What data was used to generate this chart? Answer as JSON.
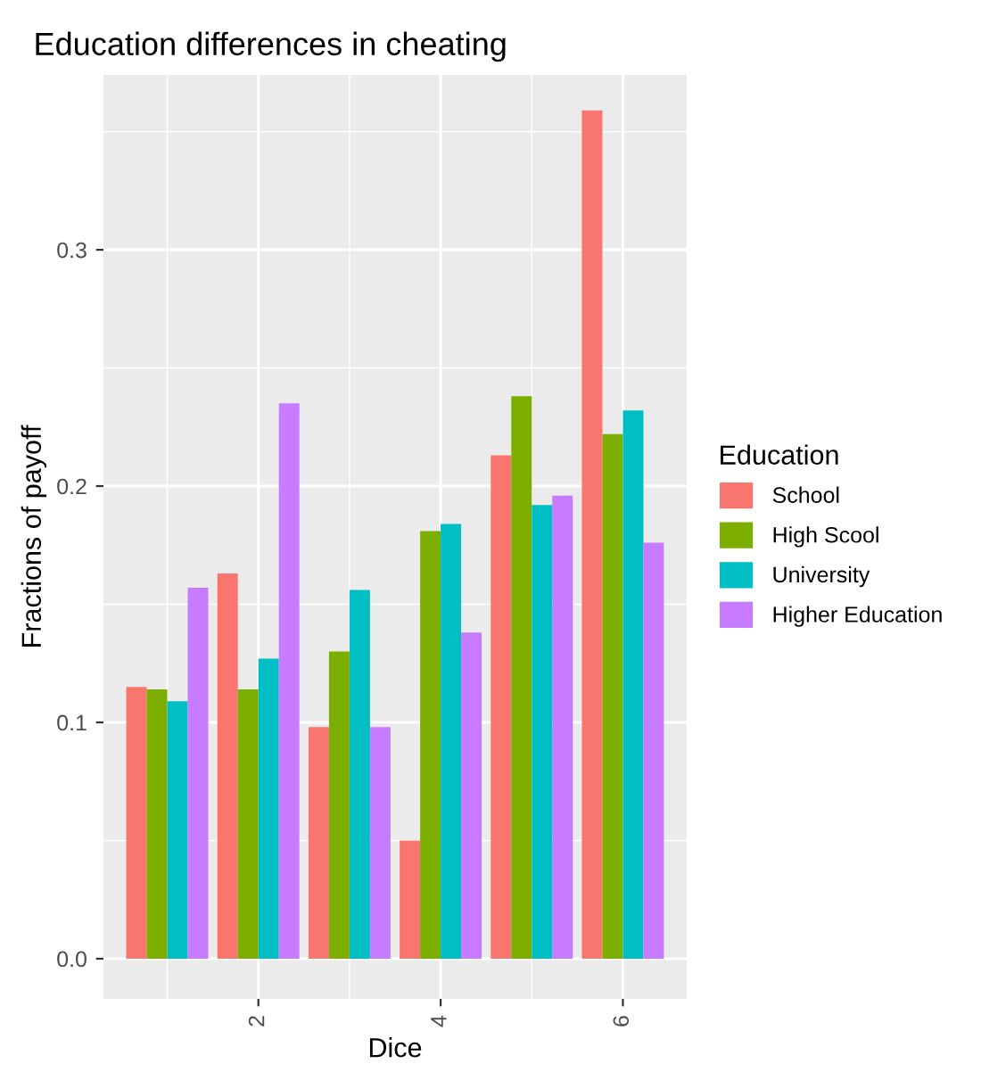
{
  "chart_data": {
    "type": "bar",
    "title": "Education differences in cheating",
    "xlabel": "Dice",
    "ylabel": "Fractions of payoff",
    "legend_title": "Education",
    "x": [
      1,
      2,
      3,
      4,
      5,
      6
    ],
    "series": [
      {
        "name": "School",
        "color": "#f8766d",
        "values": [
          0.115,
          0.163,
          0.098,
          0.05,
          0.213,
          0.359
        ]
      },
      {
        "name": "High Scool",
        "color": "#7cae00",
        "values": [
          0.114,
          0.114,
          0.13,
          0.181,
          0.238,
          0.222
        ]
      },
      {
        "name": "University",
        "color": "#00bfc4",
        "values": [
          0.109,
          0.127,
          0.156,
          0.184,
          0.192,
          0.232
        ]
      },
      {
        "name": "Higher Education",
        "color": "#c77cff",
        "values": [
          0.157,
          0.235,
          0.098,
          0.138,
          0.196,
          0.176
        ]
      }
    ],
    "xlim": [
      0.3,
      6.7
    ],
    "ylim": [
      -0.017,
      0.374
    ],
    "xticks": [
      2,
      4,
      6
    ],
    "yticks": [
      {
        "value": 0,
        "label": "0.0"
      },
      0.1,
      0.2,
      0.3
    ],
    "grid": true,
    "legend": "right"
  }
}
